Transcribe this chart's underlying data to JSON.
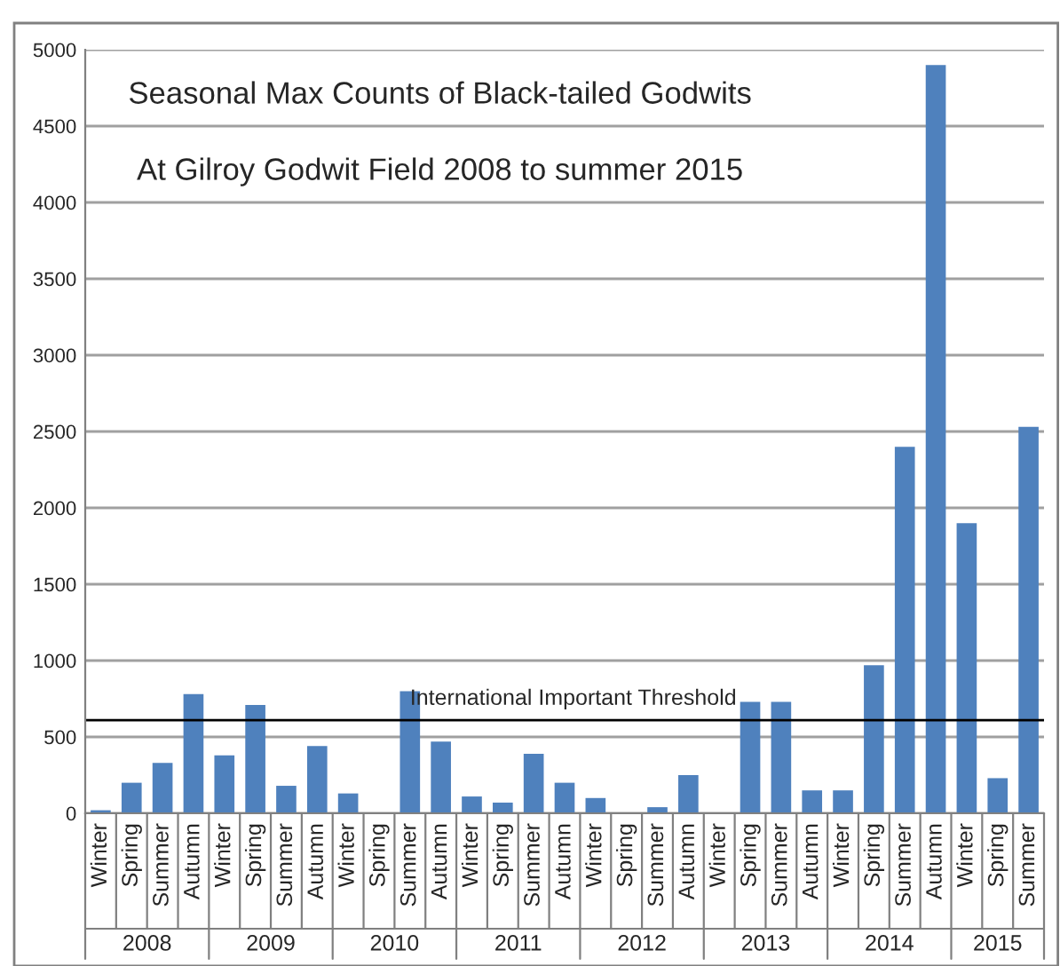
{
  "chart_data": {
    "type": "bar",
    "title": "Seasonal Max Counts of Black-tailed Godwits",
    "subtitle": "At Gilroy Godwit Field 2008 to summer 2015",
    "categories": [
      "Winter",
      "Spring",
      "Summer",
      "Autumn",
      "Winter",
      "Spring",
      "Summer",
      "Autumn",
      "Winter",
      "Spring",
      "Summer",
      "Autumn",
      "Winter",
      "Spring",
      "Summer",
      "Autumn",
      "Winter",
      "Spring",
      "Summer",
      "Autumn",
      "Winter",
      "Spring",
      "Summer",
      "Autumn",
      "Winter",
      "Spring",
      "Summer",
      "Autumn",
      "Winter",
      "Spring",
      "Summer"
    ],
    "values": [
      20,
      200,
      330,
      780,
      380,
      710,
      180,
      440,
      130,
      0,
      800,
      470,
      110,
      70,
      390,
      200,
      100,
      0,
      40,
      250,
      0,
      730,
      730,
      150,
      150,
      970,
      2400,
      4900,
      1900,
      230,
      2530
    ],
    "color": "#4f81bd",
    "annotations": [
      "2008",
      "2009",
      "2010",
      "2011",
      "2012",
      "2013",
      "2014",
      "2015"
    ],
    "ref_lines": [
      {
        "axis": "y",
        "value": 610,
        "label": "International Important Threshold",
        "color": "#000000"
      }
    ],
    "ylim": [
      0,
      5000
    ],
    "yticks": [
      0,
      500,
      1000,
      1500,
      2000,
      2500,
      3000,
      3500,
      4000,
      4500,
      5000
    ],
    "grid": "y",
    "legend": false
  }
}
